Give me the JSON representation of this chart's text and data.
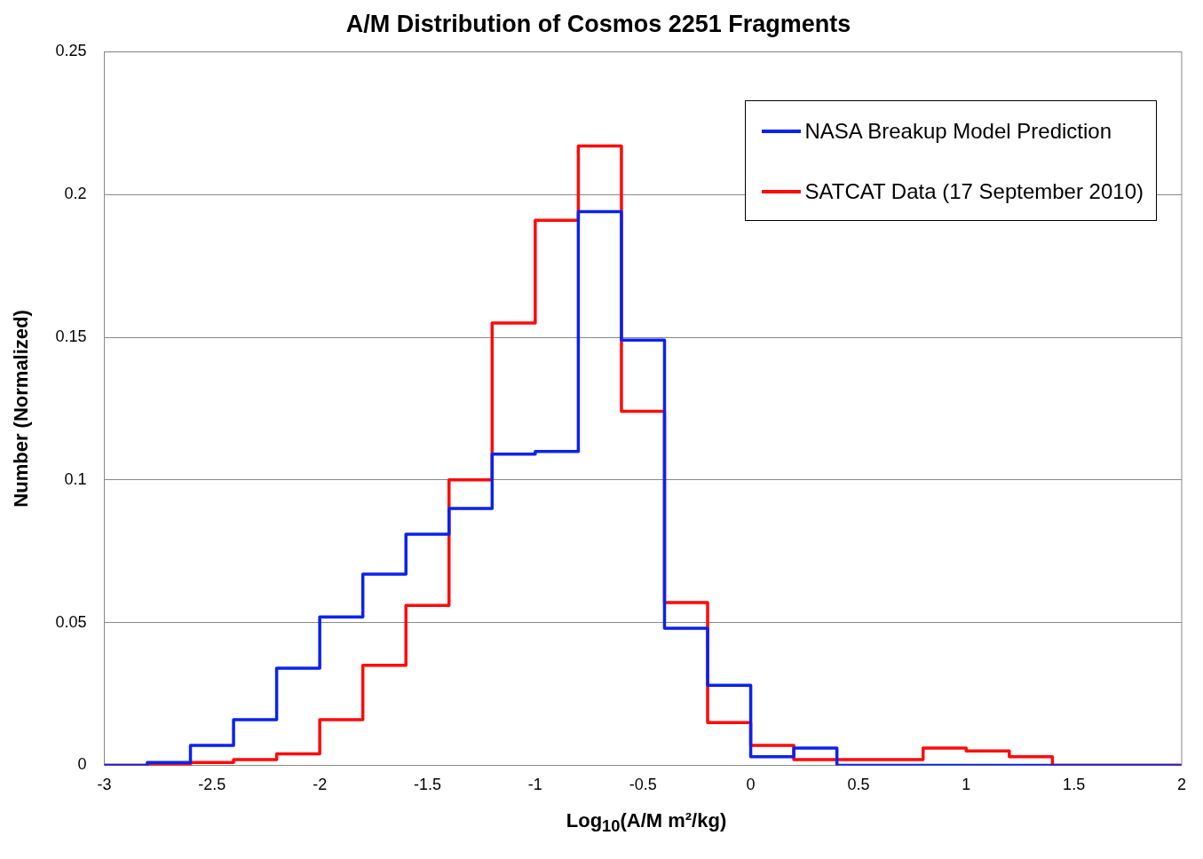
{
  "chart_data": {
    "type": "histogram",
    "title": "A/M Distribution of Cosmos 2251 Fragments",
    "xlabel": "Log$_{10}$(A/M m²/kg)",
    "ylabel": "Number (Normalized)",
    "bins": [
      -3,
      -2.8,
      -2.6,
      -2.4,
      -2.2,
      -2,
      -1.8,
      -1.6,
      -1.4,
      -1.2,
      -1,
      -0.8,
      -0.6,
      -0.4,
      -0.2,
      0,
      0.2,
      0.4,
      0.6,
      0.8,
      1,
      1.2,
      1.4,
      1.6,
      1.8,
      2
    ],
    "series": [
      {
        "name": "NASA Breakup Model Prediction",
        "color": "#0a22f0",
        "values": [
          0,
          0.001,
          0.007,
          0.016,
          0.034,
          0.052,
          0.067,
          0.081,
          0.09,
          0.109,
          0.11,
          0.194,
          0.149,
          0.048,
          0.028,
          0.003,
          0.006,
          0,
          0,
          0,
          0,
          0,
          0,
          0,
          0
        ]
      },
      {
        "name": "SATCAT Data (17 September 2010)",
        "color": "#ff0a0a",
        "values": [
          0,
          0,
          0.001,
          0.002,
          0.004,
          0.016,
          0.035,
          0.056,
          0.1,
          0.155,
          0.191,
          0.217,
          0.124,
          0.057,
          0.015,
          0.007,
          0.002,
          0.002,
          0.002,
          0.006,
          0.005,
          0.003,
          0,
          0,
          0
        ]
      }
    ],
    "xlim": [
      -3,
      2
    ],
    "xticks": [
      -3,
      -2.5,
      -2,
      -1.5,
      -1,
      -0.5,
      0,
      0.5,
      1,
      1.5,
      2
    ],
    "ylim": [
      0,
      0.25
    ],
    "yticks": [
      0,
      0.05,
      0.1,
      0.15,
      0.2,
      0.25
    ],
    "grid": "y",
    "legend": "top right"
  }
}
